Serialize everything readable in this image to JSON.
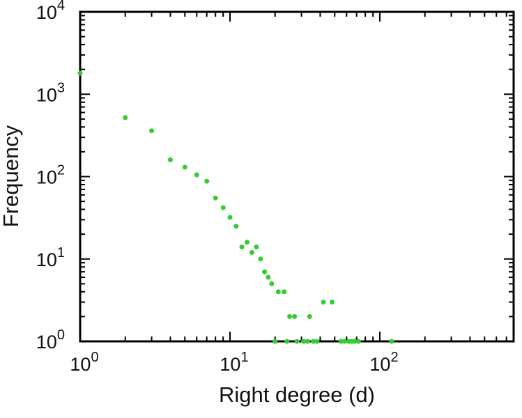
{
  "figure": {
    "background": "#ffffff"
  },
  "chart_data": {
    "type": "scatter",
    "title": "",
    "xlabel": "Right degree (d)",
    "ylabel": "Frequency",
    "xscale": "log",
    "yscale": "log",
    "xlim": [
      1,
      780
    ],
    "ylim": [
      1,
      10000
    ],
    "x_tick_exponents": [
      0,
      1,
      2
    ],
    "y_tick_exponents": [
      0,
      1,
      2,
      3,
      4
    ],
    "tick_base": "10",
    "grid": false,
    "axis_color": "#000000",
    "marker": {
      "shape": "circle",
      "color": "#33cc33",
      "radius": 3.5
    },
    "points": [
      [
        1,
        1800
      ],
      [
        2,
        520
      ],
      [
        3,
        360
      ],
      [
        4,
        160
      ],
      [
        5,
        130
      ],
      [
        6,
        105
      ],
      [
        7,
        88
      ],
      [
        8,
        55
      ],
      [
        9,
        42
      ],
      [
        10,
        32
      ],
      [
        11,
        25
      ],
      [
        12,
        14
      ],
      [
        13,
        16
      ],
      [
        14,
        12
      ],
      [
        15,
        14
      ],
      [
        16,
        10
      ],
      [
        17,
        7
      ],
      [
        18,
        6
      ],
      [
        19,
        5
      ],
      [
        20,
        1
      ],
      [
        21,
        4
      ],
      [
        23,
        4
      ],
      [
        24,
        1
      ],
      [
        25,
        2
      ],
      [
        27,
        2
      ],
      [
        28,
        1
      ],
      [
        31,
        1
      ],
      [
        33,
        1
      ],
      [
        34,
        2
      ],
      [
        36,
        1
      ],
      [
        38,
        1
      ],
      [
        42,
        3
      ],
      [
        48,
        3
      ],
      [
        55,
        1
      ],
      [
        58,
        1
      ],
      [
        62,
        1
      ],
      [
        65,
        1
      ],
      [
        68,
        1
      ],
      [
        72,
        1
      ],
      [
        120,
        1
      ]
    ]
  }
}
